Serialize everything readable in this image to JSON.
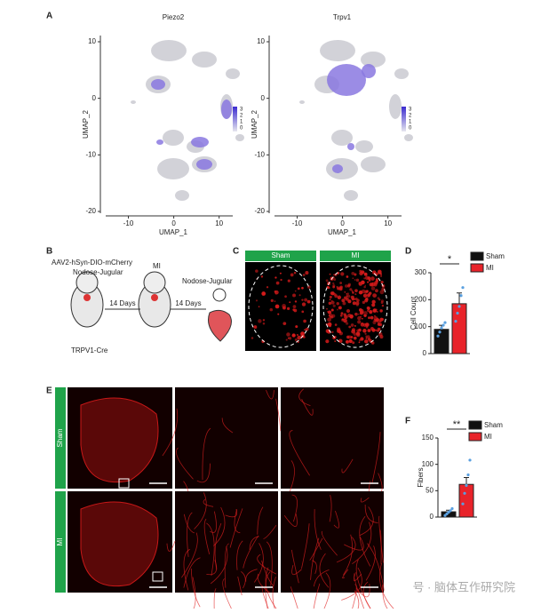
{
  "panel_labels": [
    "A",
    "B",
    "C",
    "D",
    "E",
    "F"
  ],
  "umap": {
    "x_label": "UMAP_1",
    "y_label": "UMAP_2",
    "xlim": [
      -15,
      13
    ],
    "ylim": [
      -20,
      10
    ],
    "xticks": [
      -10,
      0,
      10
    ],
    "yticks": [
      -20,
      -10,
      0,
      10
    ],
    "scale_ticks": [
      3,
      2,
      1,
      0
    ],
    "plots": [
      {
        "title": "Piezo2"
      },
      {
        "title": "Trpv1"
      }
    ]
  },
  "schematic": {
    "virus": "AAV2-hSyn-DIO-mCherry",
    "site": "Nodose-Jugular",
    "mouse": "TRPV1-Cre",
    "model": "MI",
    "interval_1": "14 Days",
    "interval_2": "14 Days",
    "harvest": "Nodose-Jugular"
  },
  "panel_c": {
    "groups": [
      "Sham",
      "MI"
    ]
  },
  "panel_e": {
    "rows": [
      "Sham",
      "MI"
    ]
  },
  "chart_data": [
    {
      "type": "bar",
      "y_label": "Cell Count",
      "categories": [
        "Sham",
        "MI"
      ],
      "colors": [
        "#111111",
        "#e8232a"
      ],
      "values": [
        90,
        185
      ],
      "errors": [
        15,
        40
      ],
      "points": [
        [
          65,
          80,
          95,
          105,
          115
        ],
        [
          120,
          150,
          175,
          215,
          245
        ]
      ],
      "ylim": [
        0,
        300
      ],
      "yticks": [
        0,
        100,
        200,
        300
      ],
      "significance": "*"
    },
    {
      "type": "bar",
      "y_label": "Fibers",
      "categories": [
        "Sham",
        "MI"
      ],
      "colors": [
        "#111111",
        "#e8232a"
      ],
      "values": [
        10,
        62
      ],
      "errors": [
        3,
        13
      ],
      "points": [
        [
          3,
          6,
          9,
          12,
          16
        ],
        [
          25,
          45,
          60,
          80,
          108
        ]
      ],
      "ylim": [
        0,
        150
      ],
      "yticks": [
        0,
        50,
        100,
        150
      ],
      "significance": "**"
    }
  ],
  "watermark": "号 · 脑体互作研究院"
}
